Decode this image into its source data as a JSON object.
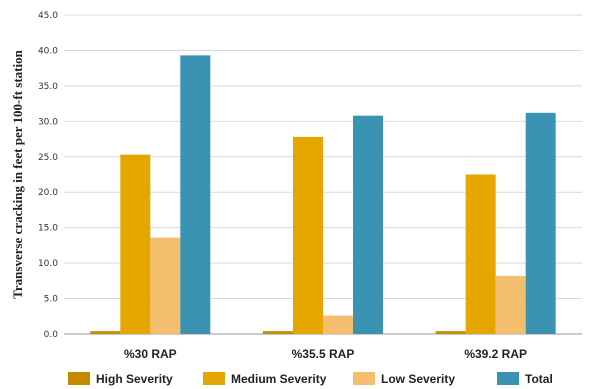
{
  "chart_data": {
    "type": "bar",
    "title": "",
    "xlabel": "",
    "ylabel": "Transverse cracking in feet per 100-ft station",
    "ylim": [
      0,
      45
    ],
    "yticks": [
      "0.0",
      "5.0",
      "10.0",
      "15.0",
      "20.0",
      "25.0",
      "30.0",
      "35.0",
      "40.0",
      "45.0"
    ],
    "grid": "horizontal",
    "legend_position": "bottom",
    "categories": [
      "%30 RAP",
      "%35.5 RAP",
      "%39.2 RAP"
    ],
    "series": [
      {
        "name": "High Severity",
        "color": "#c48a00",
        "values": [
          0.4,
          0.4,
          0.4
        ]
      },
      {
        "name": "Medium Severity",
        "color": "#e5a600",
        "values": [
          25.3,
          27.8,
          22.5
        ]
      },
      {
        "name": "Low Severity",
        "color": "#f3bf6e",
        "values": [
          13.6,
          2.6,
          8.2
        ]
      },
      {
        "name": "Total",
        "color": "#3a93b3",
        "values": [
          39.3,
          30.8,
          31.2
        ]
      }
    ]
  }
}
